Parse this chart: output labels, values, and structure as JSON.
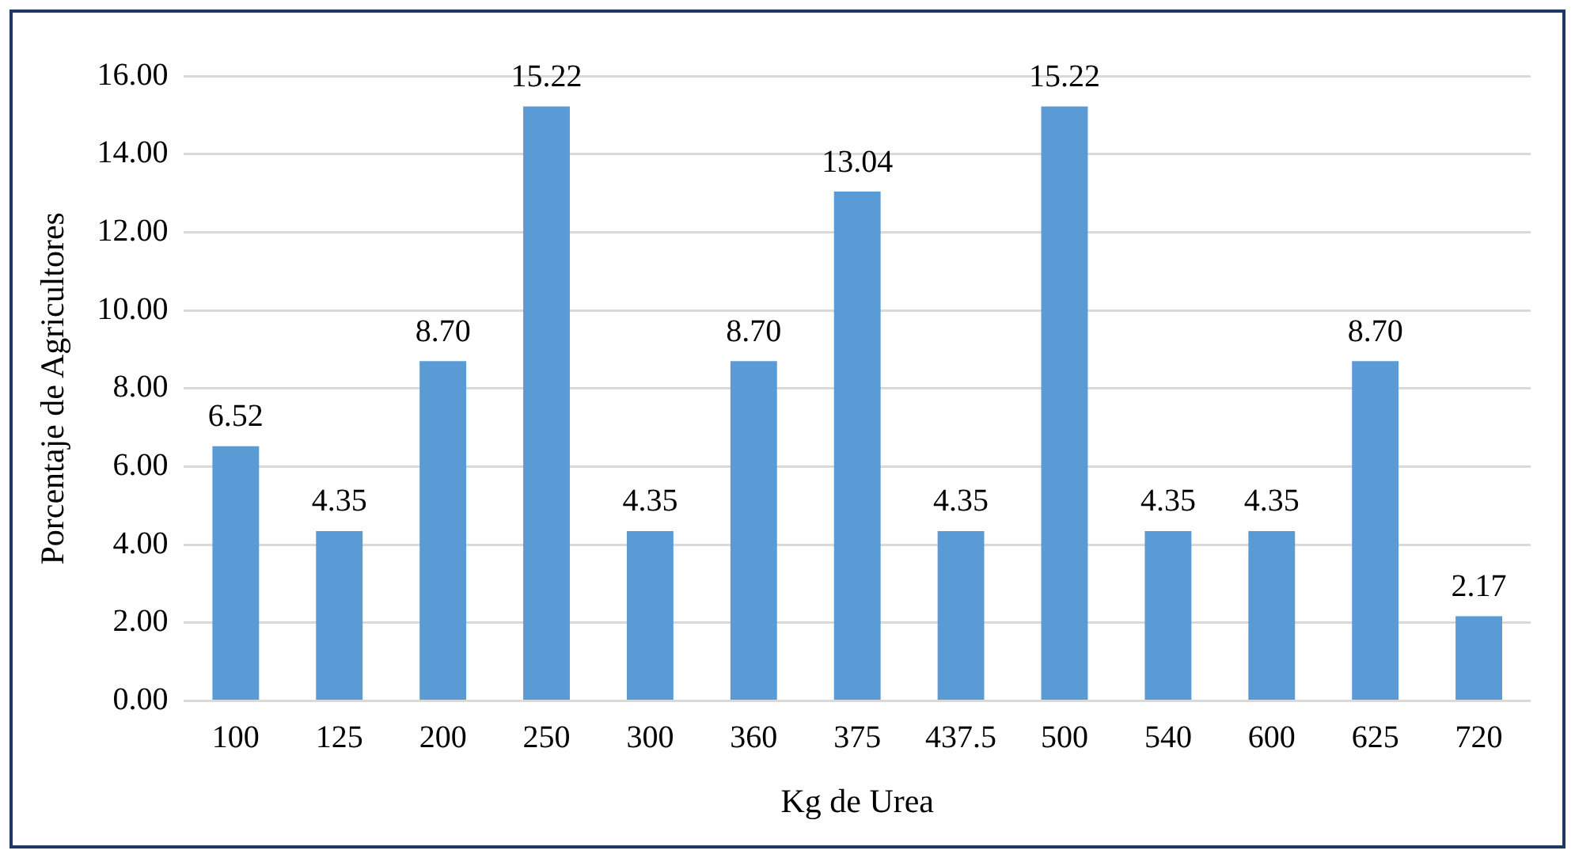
{
  "chart_data": {
    "type": "bar",
    "xlabel": "Kg de Urea",
    "ylabel": "Porcentaje de Agricultores",
    "categories": [
      "100",
      "125",
      "200",
      "250",
      "300",
      "360",
      "375",
      "437.5",
      "500",
      "540",
      "600",
      "625",
      "720"
    ],
    "values": [
      6.52,
      4.35,
      8.7,
      15.22,
      4.35,
      8.7,
      13.04,
      4.35,
      15.22,
      4.35,
      4.35,
      8.7,
      2.17
    ],
    "value_labels": [
      "6.52",
      "4.35",
      "8.70",
      "15.22",
      "4.35",
      "8.70",
      "13.04",
      "4.35",
      "15.22",
      "4.35",
      "4.35",
      "8.70",
      "2.17"
    ],
    "color": "#5b9bd5",
    "ylim": [
      0,
      16
    ],
    "yticks": [
      {
        "value": 0,
        "label": "0.00"
      },
      {
        "value": 2,
        "label": "2.00"
      },
      {
        "value": 4,
        "label": "4.00"
      },
      {
        "value": 6,
        "label": "6.00"
      },
      {
        "value": 8,
        "label": "8.00"
      },
      {
        "value": 10,
        "label": "10.00"
      },
      {
        "value": 12,
        "label": "12.00"
      },
      {
        "value": 14,
        "label": "14.00"
      },
      {
        "value": 16,
        "label": "16.00"
      }
    ],
    "grid": "y",
    "legend": false
  }
}
